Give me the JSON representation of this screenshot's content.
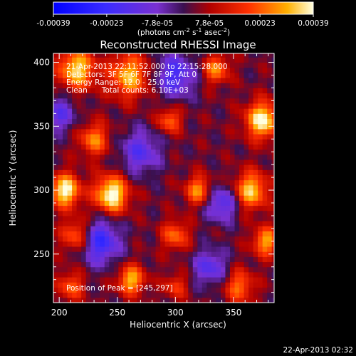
{
  "chart_data": {
    "type": "heatmap",
    "title": "Reconstructed RHESSI Image",
    "xlabel": "Heliocentric X (arcsec)",
    "ylabel": "Heliocentric Y (arcsec)",
    "xlim": [
      195,
      385
    ],
    "ylim": [
      212,
      407
    ],
    "x_ticks": [
      200,
      250,
      300,
      350
    ],
    "y_ticks": [
      250,
      300,
      350,
      400
    ],
    "colorbar": {
      "ticks": [
        "-0.00039",
        "-0.00023",
        "-7.8e-05",
        "7.8e-05",
        "0.00023",
        "0.00039"
      ],
      "range": [
        -0.00039,
        0.00039
      ],
      "unit_label_parts": {
        "base": "(photons cm",
        "e1": "-2",
        "mid1": " s",
        "e2": "-1",
        "mid2": " asec",
        "e3": "-2",
        "end": ")"
      }
    },
    "info_lines": [
      "21-Apr-2013 22:11:52.000 to 22:15:28.000",
      "Detectors: 3F 5F 6F 7F 8F 9F, Att 0",
      "Energy Range: 12.0 - 25.0 keV",
      "Clean      Total counts: 6.10E+03"
    ],
    "peak_label": "Position of Peak = [245,297]",
    "peak": [
      245,
      297
    ],
    "hot_spots": [
      {
        "x": 245,
        "y": 297,
        "amp": 1.0,
        "sigma": 10
      },
      {
        "x": 205,
        "y": 300,
        "amp": 0.95,
        "sigma": 9
      },
      {
        "x": 215,
        "y": 395,
        "amp": 0.85,
        "sigma": 11
      },
      {
        "x": 260,
        "y": 390,
        "amp": 0.75,
        "sigma": 12
      },
      {
        "x": 230,
        "y": 340,
        "amp": 0.6,
        "sigma": 9
      },
      {
        "x": 375,
        "y": 355,
        "amp": 0.95,
        "sigma": 10
      },
      {
        "x": 365,
        "y": 300,
        "amp": 0.8,
        "sigma": 10
      },
      {
        "x": 378,
        "y": 260,
        "amp": 0.7,
        "sigma": 8
      },
      {
        "x": 320,
        "y": 300,
        "amp": 0.65,
        "sigma": 8
      },
      {
        "x": 300,
        "y": 265,
        "amp": 0.55,
        "sigma": 8
      },
      {
        "x": 335,
        "y": 395,
        "amp": 0.6,
        "sigma": 8
      },
      {
        "x": 295,
        "y": 355,
        "amp": 0.55,
        "sigma": 7
      },
      {
        "x": 215,
        "y": 265,
        "amp": 0.6,
        "sigma": 9
      },
      {
        "x": 262,
        "y": 230,
        "amp": 0.75,
        "sigma": 8
      },
      {
        "x": 210,
        "y": 225,
        "amp": 0.5,
        "sigma": 8
      },
      {
        "x": 355,
        "y": 225,
        "amp": 0.55,
        "sigma": 9
      },
      {
        "x": 300,
        "y": 225,
        "amp": 0.4,
        "sigma": 7
      }
    ],
    "cold_spots": [
      {
        "x": 235,
        "y": 260,
        "amp": -0.7,
        "sigma": 12
      },
      {
        "x": 300,
        "y": 390,
        "amp": -0.6,
        "sigma": 12
      },
      {
        "x": 340,
        "y": 290,
        "amp": -0.55,
        "sigma": 10
      },
      {
        "x": 270,
        "y": 330,
        "amp": -0.5,
        "sigma": 12
      },
      {
        "x": 330,
        "y": 240,
        "amp": -0.5,
        "sigma": 10
      },
      {
        "x": 200,
        "y": 360,
        "amp": -0.45,
        "sigma": 10
      }
    ]
  },
  "footer": {
    "timestamp": "22-Apr-2013 02:32"
  }
}
